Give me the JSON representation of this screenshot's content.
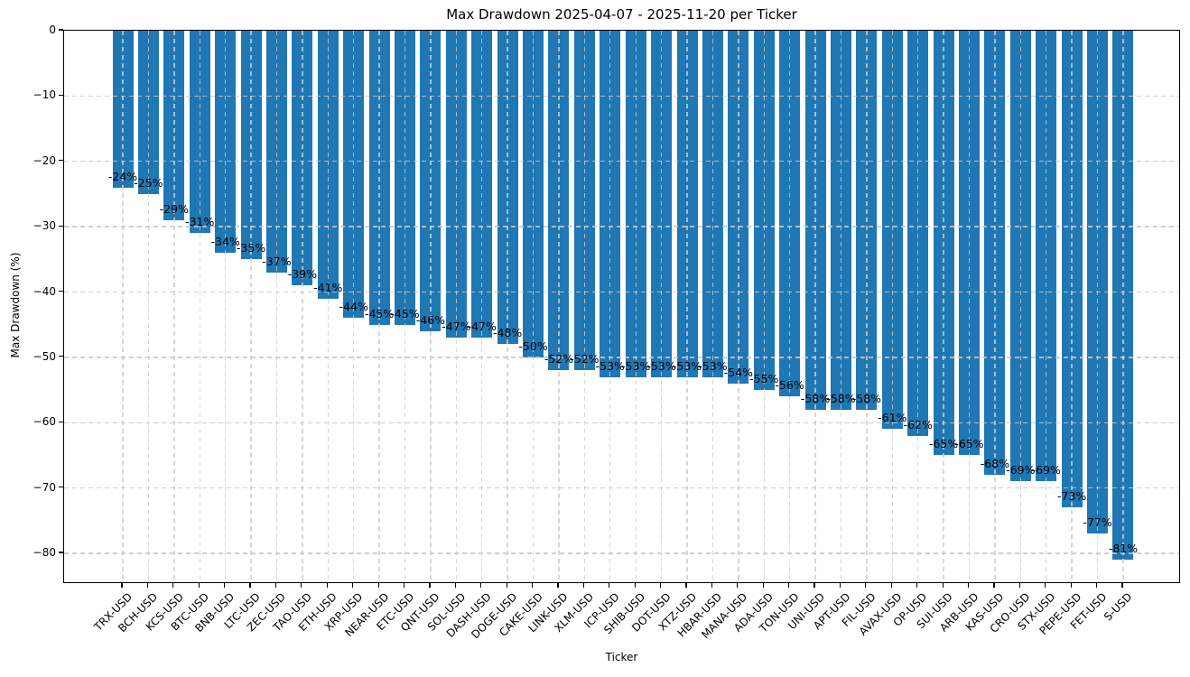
{
  "chart_data": {
    "type": "bar",
    "title": "Max Drawdown 2025-04-07 - 2025-11-20 per Ticker",
    "xlabel": "Ticker",
    "ylabel": "Max Drawdown (%)",
    "categories": [
      "TRX-USD",
      "BCH-USD",
      "KCS-USD",
      "BTC-USD",
      "BNB-USD",
      "LTC-USD",
      "ZEC-USD",
      "TAO-USD",
      "ETH-USD",
      "XRP-USD",
      "NEAR-USD",
      "ETC-USD",
      "QNT-USD",
      "SOL-USD",
      "DASH-USD",
      "DOGE-USD",
      "CAKE-USD",
      "LINK-USD",
      "XLM-USD",
      "ICP-USD",
      "SHIB-USD",
      "DOT-USD",
      "XTZ-USD",
      "HBAR-USD",
      "MANA-USD",
      "ADA-USD",
      "TON-USD",
      "UNI-USD",
      "APT-USD",
      "FIL-USD",
      "AVAX-USD",
      "OP-USD",
      "SUI-USD",
      "ARB-USD",
      "KAS-USD",
      "CRO-USD",
      "STX-USD",
      "PEPE-USD",
      "FET-USD",
      "S-USD"
    ],
    "values": [
      -24,
      -25,
      -29,
      -31,
      -34,
      -35,
      -37,
      -39,
      -41,
      -44,
      -45,
      -45,
      -46,
      -47,
      -47,
      -48,
      -50,
      -52,
      -52,
      -53,
      -53,
      -53,
      -53,
      -53,
      -54,
      -55,
      -56,
      -58,
      -58,
      -58,
      -61,
      -62,
      -65,
      -65,
      -68,
      -69,
      -69,
      -73,
      -77,
      -81
    ],
    "bar_labels": [
      "-24%",
      "-25%",
      "-29%",
      "-31%",
      "-34%",
      "-35%",
      "-37%",
      "-39%",
      "-41%",
      "-44%",
      "-45%",
      "-45%",
      "-46%",
      "-47%",
      "-47%",
      "-48%",
      "-50%",
      "-52%",
      "-52%",
      "-53%",
      "-53%",
      "-53%",
      "-53%",
      "-53%",
      "-54%",
      "-55%",
      "-56%",
      "-58%",
      "-58%",
      "-58%",
      "-61%",
      "-62%",
      "-65%",
      "-65%",
      "-68%",
      "-69%",
      "-69%",
      "-73%",
      "-77%",
      "-81%"
    ],
    "ylim": [
      -85,
      0
    ],
    "yticks": [
      0,
      -10,
      -20,
      -30,
      -40,
      -50,
      -60,
      -70,
      -80
    ],
    "ytick_labels": [
      "0",
      "−10",
      "−20",
      "−30",
      "−40",
      "−50",
      "−60",
      "−70",
      "−80"
    ],
    "grid": "dashed-above-bars",
    "legend": "none",
    "bar_color": "#1f77b4",
    "grid_color": "#c9c9c9",
    "background": "#ffffff",
    "text_color": "#000000"
  }
}
